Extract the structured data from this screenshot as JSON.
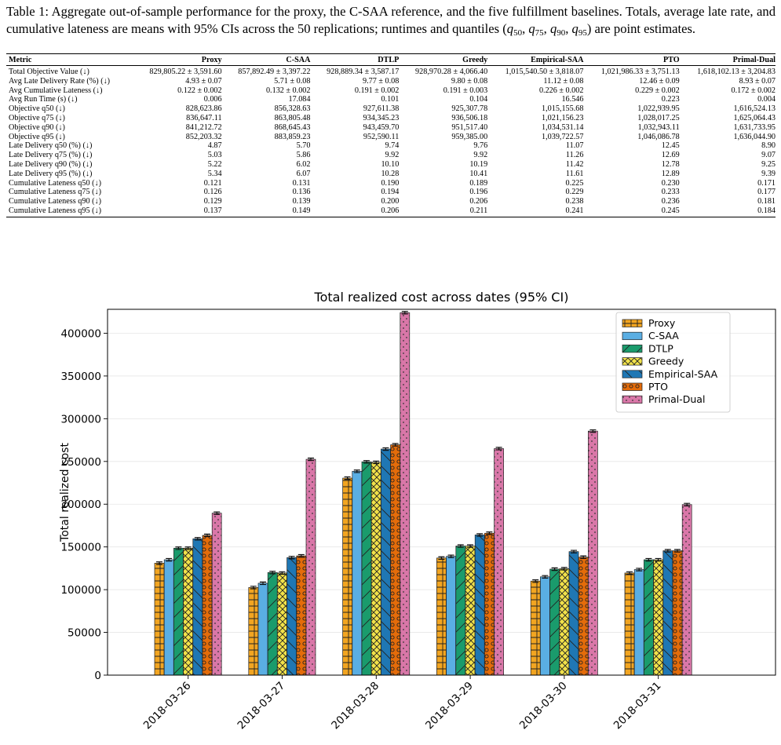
{
  "caption": {
    "label": "Table 1:",
    "text_before": "Aggregate out-of-sample performance for the proxy, the C-SAA reference, and the five fulfillment baselines. Totals, average late rate, and cumulative lateness are means with 95% CIs across the 50 replications; runtimes and quantiles (",
    "q_symbol": "q",
    "quantile_subs": [
      "50",
      "75",
      "90",
      "95"
    ],
    "text_after": ") are point estimates."
  },
  "table": {
    "columns": [
      "Metric",
      "Proxy",
      "C-SAA",
      "DTLP",
      "Greedy",
      "Empirical-SAA",
      "PTO",
      "Primal-Dual"
    ],
    "rows": [
      [
        "Total Objective Value (↓)",
        "829,805.22 ± 3,591.60",
        "857,892.49 ± 3,397.22",
        "928,889.34 ± 3,587.17",
        "928,970.28 ± 4,066.40",
        "1,015,540.50 ± 3,818.07",
        "1,021,986.33 ± 3,751.13",
        "1,618,102.13 ± 3,204.83"
      ],
      [
        "Avg Late Delivery Rate (%) (↓)",
        "4.93 ± 0.07",
        "5.71 ± 0.08",
        "9.77 ± 0.08",
        "9.80 ± 0.08",
        "11.12 ± 0.08",
        "12.46 ± 0.09",
        "8.93 ± 0.07"
      ],
      [
        "Avg Cumulative Lateness (↓)",
        "0.122 ± 0.002",
        "0.132 ± 0.002",
        "0.191 ± 0.002",
        "0.191 ± 0.003",
        "0.226 ± 0.002",
        "0.229 ± 0.002",
        "0.172 ± 0.002"
      ],
      [
        "Avg Run Time (s) (↓)",
        "0.006",
        "17.084",
        "0.101",
        "0.104",
        "16.546",
        "0.223",
        "0.004"
      ],
      [
        "Objective q50 (↓)",
        "828,623.86",
        "856,328.63",
        "927,611.38",
        "925,307.78",
        "1,015,155.68",
        "1,022,939.95",
        "1,616,524.13"
      ],
      [
        "Objective q75 (↓)",
        "836,647.11",
        "863,805.48",
        "934,345.23",
        "936,506.18",
        "1,021,156.23",
        "1,028,017.25",
        "1,625,064.43"
      ],
      [
        "Objective q90 (↓)",
        "841,212.72",
        "868,645.43",
        "943,459.70",
        "951,517.40",
        "1,034,531.14",
        "1,032,943.11",
        "1,631,733.95"
      ],
      [
        "Objective q95 (↓)",
        "852,203.32",
        "883,859.23",
        "952,590.11",
        "959,385.00",
        "1,039,722.57",
        "1,046,086.78",
        "1,636,044.90"
      ],
      [
        "Late Delivery q50 (%) (↓)",
        "4.87",
        "5.70",
        "9.74",
        "9.76",
        "11.07",
        "12.45",
        "8.90"
      ],
      [
        "Late Delivery q75 (%) (↓)",
        "5.03",
        "5.86",
        "9.92",
        "9.92",
        "11.26",
        "12.69",
        "9.07"
      ],
      [
        "Late Delivery q90 (%) (↓)",
        "5.22",
        "6.02",
        "10.10",
        "10.19",
        "11.42",
        "12.78",
        "9.25"
      ],
      [
        "Late Delivery q95 (%) (↓)",
        "5.34",
        "6.07",
        "10.28",
        "10.41",
        "11.61",
        "12.89",
        "9.39"
      ],
      [
        "Cumulative Lateness q50 (↓)",
        "0.121",
        "0.131",
        "0.190",
        "0.189",
        "0.225",
        "0.230",
        "0.171"
      ],
      [
        "Cumulative Lateness q75 (↓)",
        "0.126",
        "0.136",
        "0.194",
        "0.196",
        "0.229",
        "0.233",
        "0.177"
      ],
      [
        "Cumulative Lateness q90 (↓)",
        "0.129",
        "0.139",
        "0.200",
        "0.206",
        "0.238",
        "0.236",
        "0.181"
      ],
      [
        "Cumulative Lateness q95 (↓)",
        "0.137",
        "0.149",
        "0.206",
        "0.211",
        "0.241",
        "0.245",
        "0.184"
      ]
    ]
  },
  "chart_data": {
    "type": "bar",
    "title": "Total realized cost across dates (95% CI)",
    "xlabel": "",
    "ylabel": "Total realized cost",
    "ylim": [
      0,
      428000
    ],
    "yticks": [
      0,
      50000,
      100000,
      150000,
      200000,
      250000,
      300000,
      350000,
      400000
    ],
    "grid": "y",
    "legend_position": "top-right",
    "categories": [
      "2018-03-26",
      "2018-03-27",
      "2018-03-28",
      "2018-03-29",
      "2018-03-30",
      "2018-03-31"
    ],
    "series": [
      {
        "name": "Proxy",
        "color": "#f2a521",
        "hatch": "grid",
        "values": [
          131000,
          102500,
          230500,
          137000,
          110000,
          119500
        ]
      },
      {
        "name": "C-SAA",
        "color": "#5aaee3",
        "hatch": "none",
        "values": [
          135000,
          107500,
          238500,
          139000,
          115000,
          123500
        ]
      },
      {
        "name": "DTLP",
        "color": "#1a9b6c",
        "hatch": "forward",
        "values": [
          148500,
          120000,
          249500,
          151000,
          124000,
          135000
        ]
      },
      {
        "name": "Greedy",
        "color": "#f2e24a",
        "hatch": "cross",
        "values": [
          148500,
          119500,
          249000,
          151000,
          124500,
          135000
        ]
      },
      {
        "name": "Empirical-SAA",
        "color": "#1f77b4",
        "hatch": "back",
        "values": [
          159500,
          137500,
          264500,
          164000,
          144500,
          145500
        ]
      },
      {
        "name": "PTO",
        "color": "#e46c0a",
        "hatch": "circles",
        "values": [
          163500,
          139500,
          269500,
          166000,
          138000,
          145500
        ]
      },
      {
        "name": "Primal-Dual",
        "color": "#d977a8",
        "hatch": "dots",
        "values": [
          189500,
          252500,
          424000,
          265000,
          285500,
          199500
        ]
      }
    ]
  }
}
